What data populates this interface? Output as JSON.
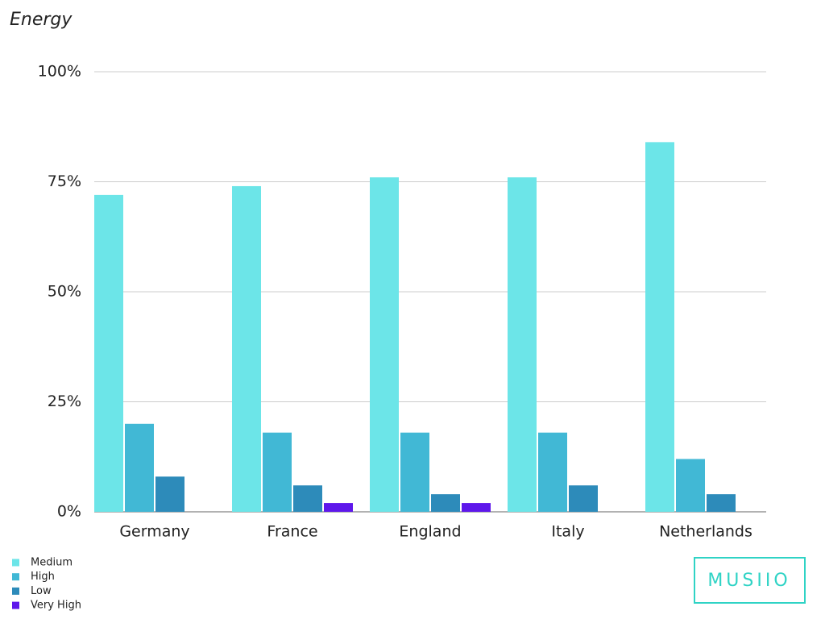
{
  "chart_data": {
    "type": "bar",
    "title": "Energy",
    "categories": [
      "Germany",
      "France",
      "England",
      "Italy",
      "Netherlands"
    ],
    "series": [
      {
        "name": "Medium",
        "color": "#6ce5e8",
        "values": [
          72,
          74,
          76,
          76,
          84
        ]
      },
      {
        "name": "High",
        "color": "#41b8d5",
        "values": [
          20,
          18,
          18,
          18,
          12
        ]
      },
      {
        "name": "Low",
        "color": "#2d8bba",
        "values": [
          8,
          6,
          4,
          6,
          4
        ]
      },
      {
        "name": "Very High",
        "color": "#5e17eb",
        "values": [
          0,
          2,
          2,
          0,
          0
        ]
      }
    ],
    "ylim": [
      0,
      100
    ],
    "yticks": [
      {
        "value": 0,
        "label": "0%"
      },
      {
        "value": 25,
        "label": "25%"
      },
      {
        "value": 50,
        "label": "50%"
      },
      {
        "value": 75,
        "label": "75%"
      },
      {
        "value": 100,
        "label": "100%"
      }
    ],
    "grid": true,
    "legend": "bottom-left"
  },
  "logo": "MUSIIO"
}
